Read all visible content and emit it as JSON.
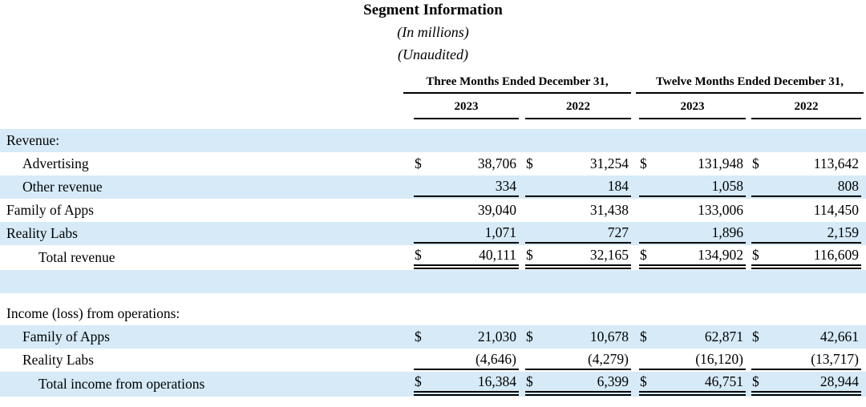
{
  "symbols": {
    "dollar": "$"
  },
  "title": "Segment Information",
  "subtitle1": "(In millions)",
  "subtitle2": "(Unaudited)",
  "table": {
    "group_headers": [
      "Three Months Ended December 31,",
      "Twelve Months Ended December 31,"
    ],
    "year_headers": [
      "2023",
      "2022",
      "2023",
      "2022"
    ],
    "rows": [
      {
        "label": "Revenue:",
        "values": [
          "",
          "",
          "",
          ""
        ]
      },
      {
        "label": "Advertising",
        "values": [
          "38,706",
          "31,254",
          "131,948",
          "113,642"
        ]
      },
      {
        "label": "Other revenue",
        "values": [
          "334",
          "184",
          "1,058",
          "808"
        ]
      },
      {
        "label": "Family of Apps",
        "values": [
          "39,040",
          "31,438",
          "133,006",
          "114,450"
        ]
      },
      {
        "label": "Reality Labs",
        "values": [
          "1,071",
          "727",
          "1,896",
          "2,159"
        ]
      },
      {
        "label": "Total revenue",
        "values": [
          "40,111",
          "32,165",
          "134,902",
          "116,609"
        ]
      },
      {
        "label": "",
        "values": [
          "",
          "",
          "",
          ""
        ]
      },
      {
        "label": "",
        "values": [
          "",
          "",
          "",
          ""
        ]
      },
      {
        "label": "Income (loss) from operations:",
        "values": [
          "",
          "",
          "",
          ""
        ]
      },
      {
        "label": "Family of Apps",
        "values": [
          "21,030",
          "10,678",
          "62,871",
          "42,661"
        ]
      },
      {
        "label": "Reality Labs",
        "values": [
          "(4,646)",
          "(4,279)",
          "(16,120)",
          "(13,717)"
        ]
      },
      {
        "label": "Total income from operations",
        "values": [
          "16,384",
          "6,399",
          "46,751",
          "28,944"
        ]
      }
    ]
  },
  "colors": {
    "row_shade": "#d6eaf8",
    "text": "#000000",
    "rule": "#000000"
  }
}
